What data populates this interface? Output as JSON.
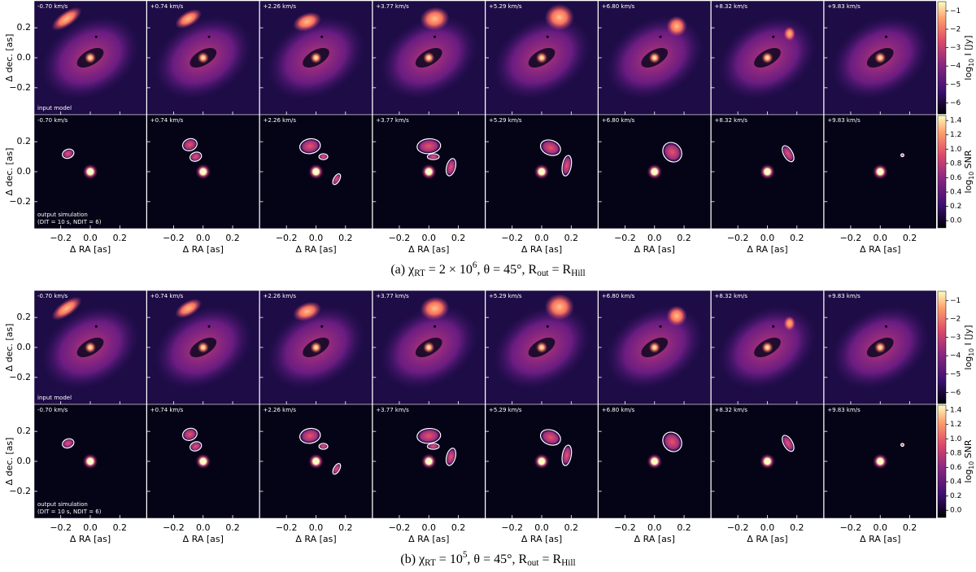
{
  "figure": {
    "channels": [
      "-0.70 km/s",
      "+0.74 km/s",
      "+2.26 km/s",
      "+3.77 km/s",
      "+5.29 km/s",
      "+6.80 km/s",
      "+8.32 km/s",
      "+9.83 km/s"
    ],
    "xaxis": {
      "label": "Δ RA [as]",
      "lim": [
        -0.38,
        0.38
      ],
      "ticks": [
        {
          "value": -0.2,
          "label": "−0.2"
        },
        {
          "value": 0,
          "label": "0.0"
        },
        0.2
      ]
    },
    "yaxis": {
      "label": "Δ dec. [as]",
      "lim": [
        -0.38,
        0.38
      ],
      "ticks": [
        {
          "value": -0.2,
          "label": "−0.2"
        },
        {
          "value": 0,
          "label": "0.0"
        },
        0.2
      ]
    },
    "rows": [
      {
        "note": [
          "input model"
        ],
        "colorbar": {
          "label": [
            "log",
            "10",
            " I [Jy]"
          ],
          "lim": [
            -6.6,
            -0.5
          ],
          "ticks": [
            {
              "value": -1,
              "label": "−1"
            },
            {
              "value": -2,
              "label": "−2"
            },
            {
              "value": -3,
              "label": "−3"
            },
            {
              "value": -4,
              "label": "−4"
            },
            {
              "value": -5,
              "label": "−5"
            },
            {
              "value": -6,
              "label": "−6"
            }
          ]
        }
      },
      {
        "note": [
          "output simulation",
          "(DIT = 10 s, NDIT = 6)"
        ],
        "colorbar": {
          "label": [
            "log",
            "10",
            " SNR"
          ],
          "lim": [
            -0.1,
            1.47
          ],
          "ticks": [
            {
              "value": 0,
              "label": "0.0"
            },
            0.2,
            0.4,
            0.6,
            0.8,
            {
              "value": 1,
              "label": "1.0"
            },
            1.2,
            1.4
          ]
        }
      }
    ],
    "panels": [
      {
        "caption": [
          "(a) χ",
          "RT",
          " = 2 × 10",
          "6",
          ", θ = 45°, R",
          "out",
          " = R",
          "Hill"
        ]
      },
      {
        "caption": [
          "(b) χ",
          "RT",
          " = 10",
          "5",
          ", θ = 45°, R",
          "out",
          " = R",
          "Hill"
        ]
      }
    ]
  }
}
